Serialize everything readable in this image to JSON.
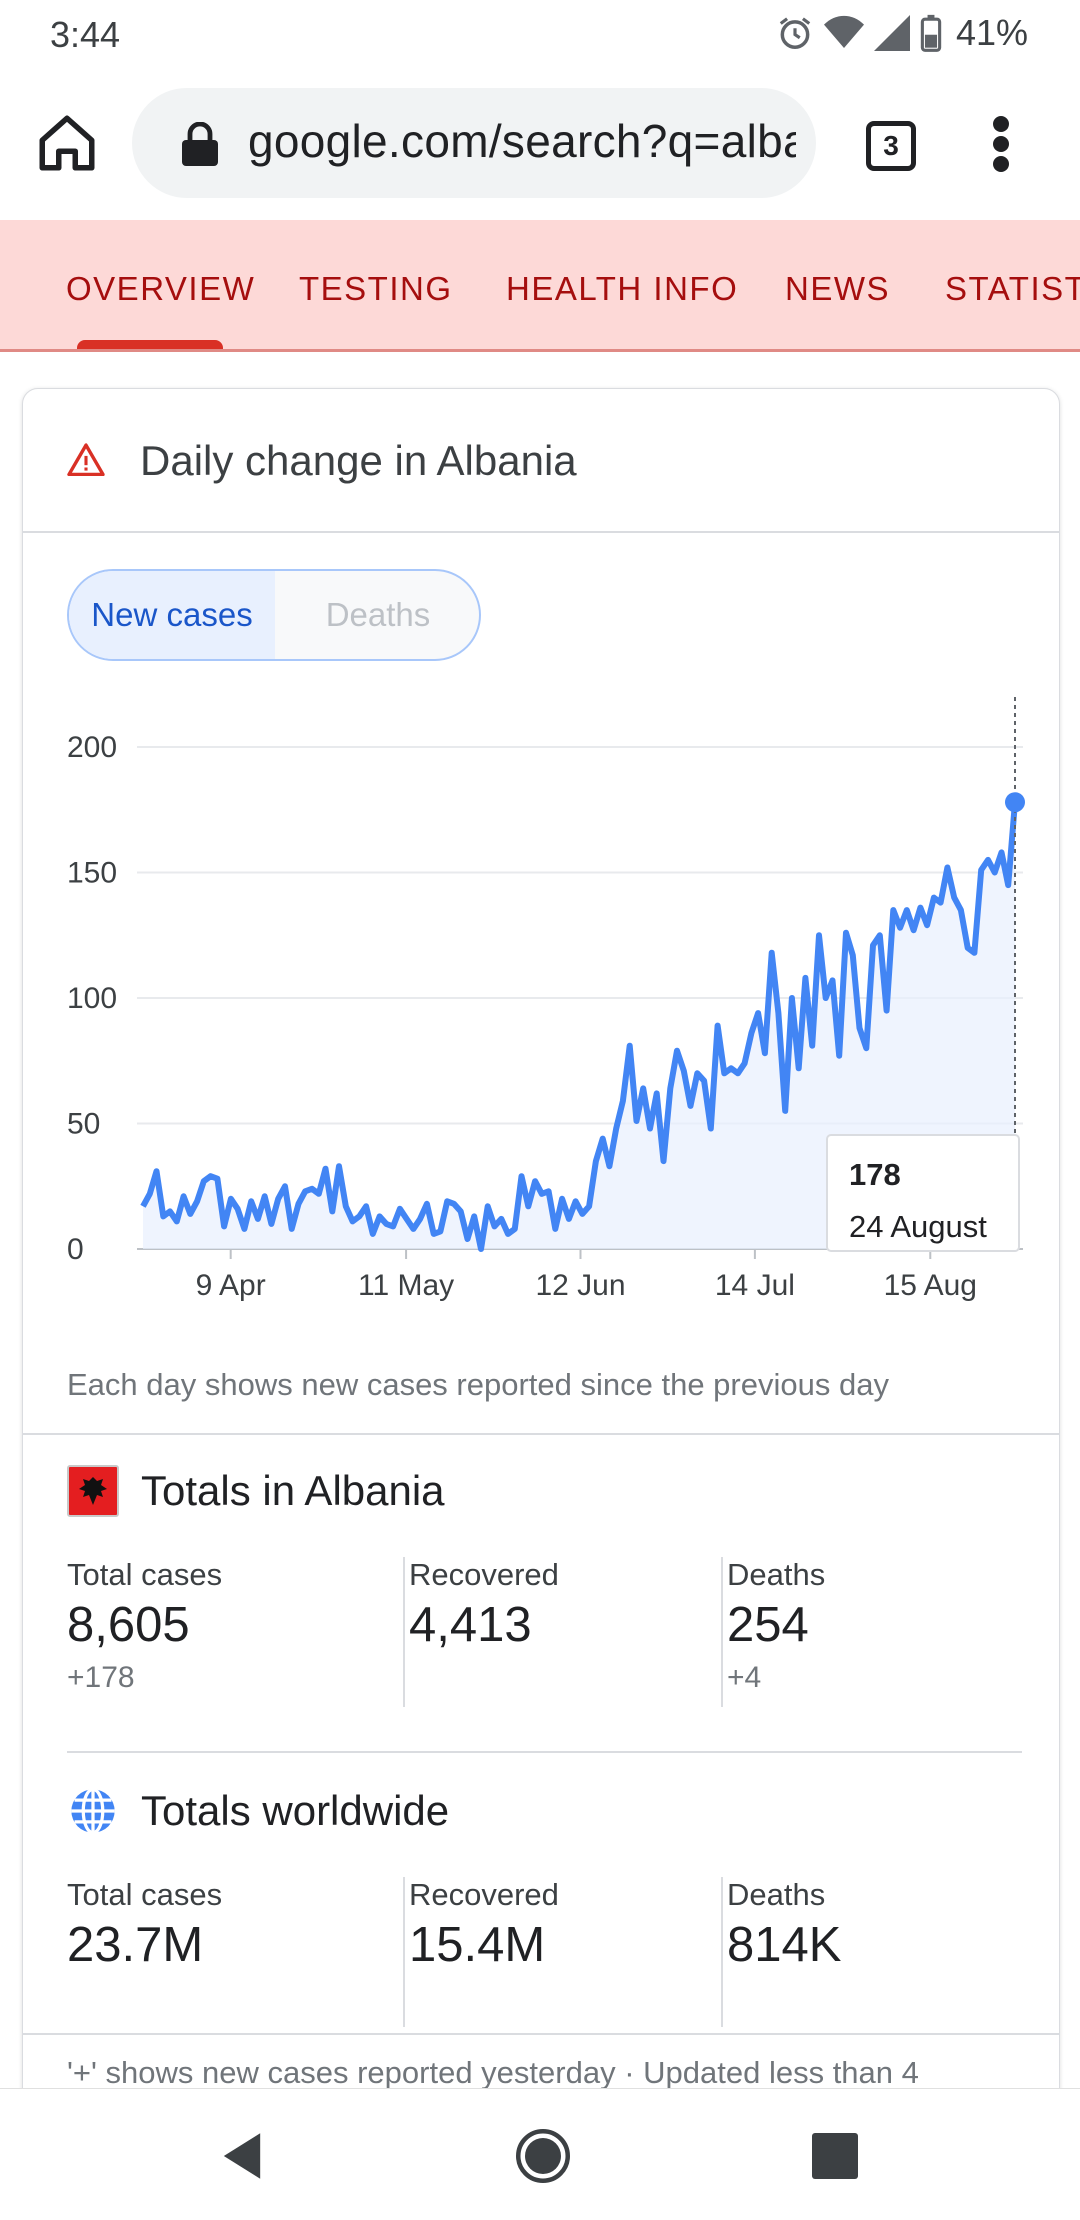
{
  "status_bar": {
    "time": "3:44",
    "battery": "41%",
    "icons": [
      "alarm-icon",
      "wifi-icon",
      "signal-icon",
      "battery-icon"
    ]
  },
  "browser": {
    "url": "google.com/search?q=albania",
    "tab_count": "3"
  },
  "tabs": [
    {
      "label": "OVERVIEW",
      "active": true
    },
    {
      "label": "TESTING",
      "active": false
    },
    {
      "label": "HEALTH INFO",
      "active": false
    },
    {
      "label": "NEWS",
      "active": false
    },
    {
      "label": "STATISTICS",
      "active": false
    }
  ],
  "card": {
    "title": "Daily change in Albania",
    "toggle": {
      "selected": "New cases",
      "other": "Deaths"
    },
    "note": "Each day shows new cases reported since the previous day",
    "tooltip": {
      "value": "178",
      "date": "24 August"
    },
    "footnote": "'+' shows new cases reported yesterday · Updated less than 4"
  },
  "chart_data": {
    "type": "line",
    "title": "Daily change in Albania",
    "series": [
      {
        "name": "New cases",
        "values": [
          17,
          22,
          31,
          13,
          15,
          11,
          21,
          14,
          19,
          27,
          29,
          28,
          9,
          20,
          16,
          8,
          19,
          12,
          21,
          10,
          20,
          25,
          8,
          18,
          23,
          24,
          22,
          32,
          15,
          33,
          17,
          11,
          13,
          17,
          6,
          13,
          10,
          9,
          16,
          12,
          8,
          12,
          18,
          6,
          7,
          19,
          18,
          15,
          4,
          13,
          0,
          17,
          9,
          12,
          6,
          8,
          29,
          17,
          27,
          22,
          23,
          8,
          20,
          12,
          19,
          14,
          17,
          35,
          44,
          33,
          48,
          59,
          81,
          51,
          64,
          48,
          62,
          35,
          64,
          79,
          71,
          57,
          70,
          67,
          48,
          89,
          70,
          72,
          70,
          74,
          86,
          94,
          78,
          118,
          94,
          55,
          100,
          72,
          108,
          81,
          125,
          100,
          107,
          77,
          126,
          117,
          88,
          80,
          121,
          125,
          95,
          135,
          128,
          135,
          127,
          136,
          129,
          140,
          138,
          152,
          140,
          135,
          120,
          118,
          151,
          155,
          150,
          158,
          145,
          178
        ]
      }
    ],
    "x_ticks": [
      "9 Apr",
      "11 May",
      "12 Jun",
      "14 Jul",
      "15 Aug"
    ],
    "y_ticks": [
      "0",
      "50",
      "100",
      "150",
      "200"
    ],
    "ylim": [
      0,
      200
    ],
    "line_color": "#4285f4",
    "grid": true
  },
  "totals_albania": {
    "title": "Totals in Albania",
    "stats": [
      {
        "label": "Total cases",
        "value": "8,605",
        "delta": "+178"
      },
      {
        "label": "Recovered",
        "value": "4,413",
        "delta": ""
      },
      {
        "label": "Deaths",
        "value": "254",
        "delta": "+4"
      }
    ]
  },
  "totals_world": {
    "title": "Totals worldwide",
    "stats": [
      {
        "label": "Total cases",
        "value": "23.7M"
      },
      {
        "label": "Recovered",
        "value": "15.4M"
      },
      {
        "label": "Deaths",
        "value": "814K"
      }
    ]
  },
  "colors": {
    "accent_red": "#d93025",
    "tab_bg": "#fdd9d7",
    "toggle_blue": "#1a56c9"
  }
}
